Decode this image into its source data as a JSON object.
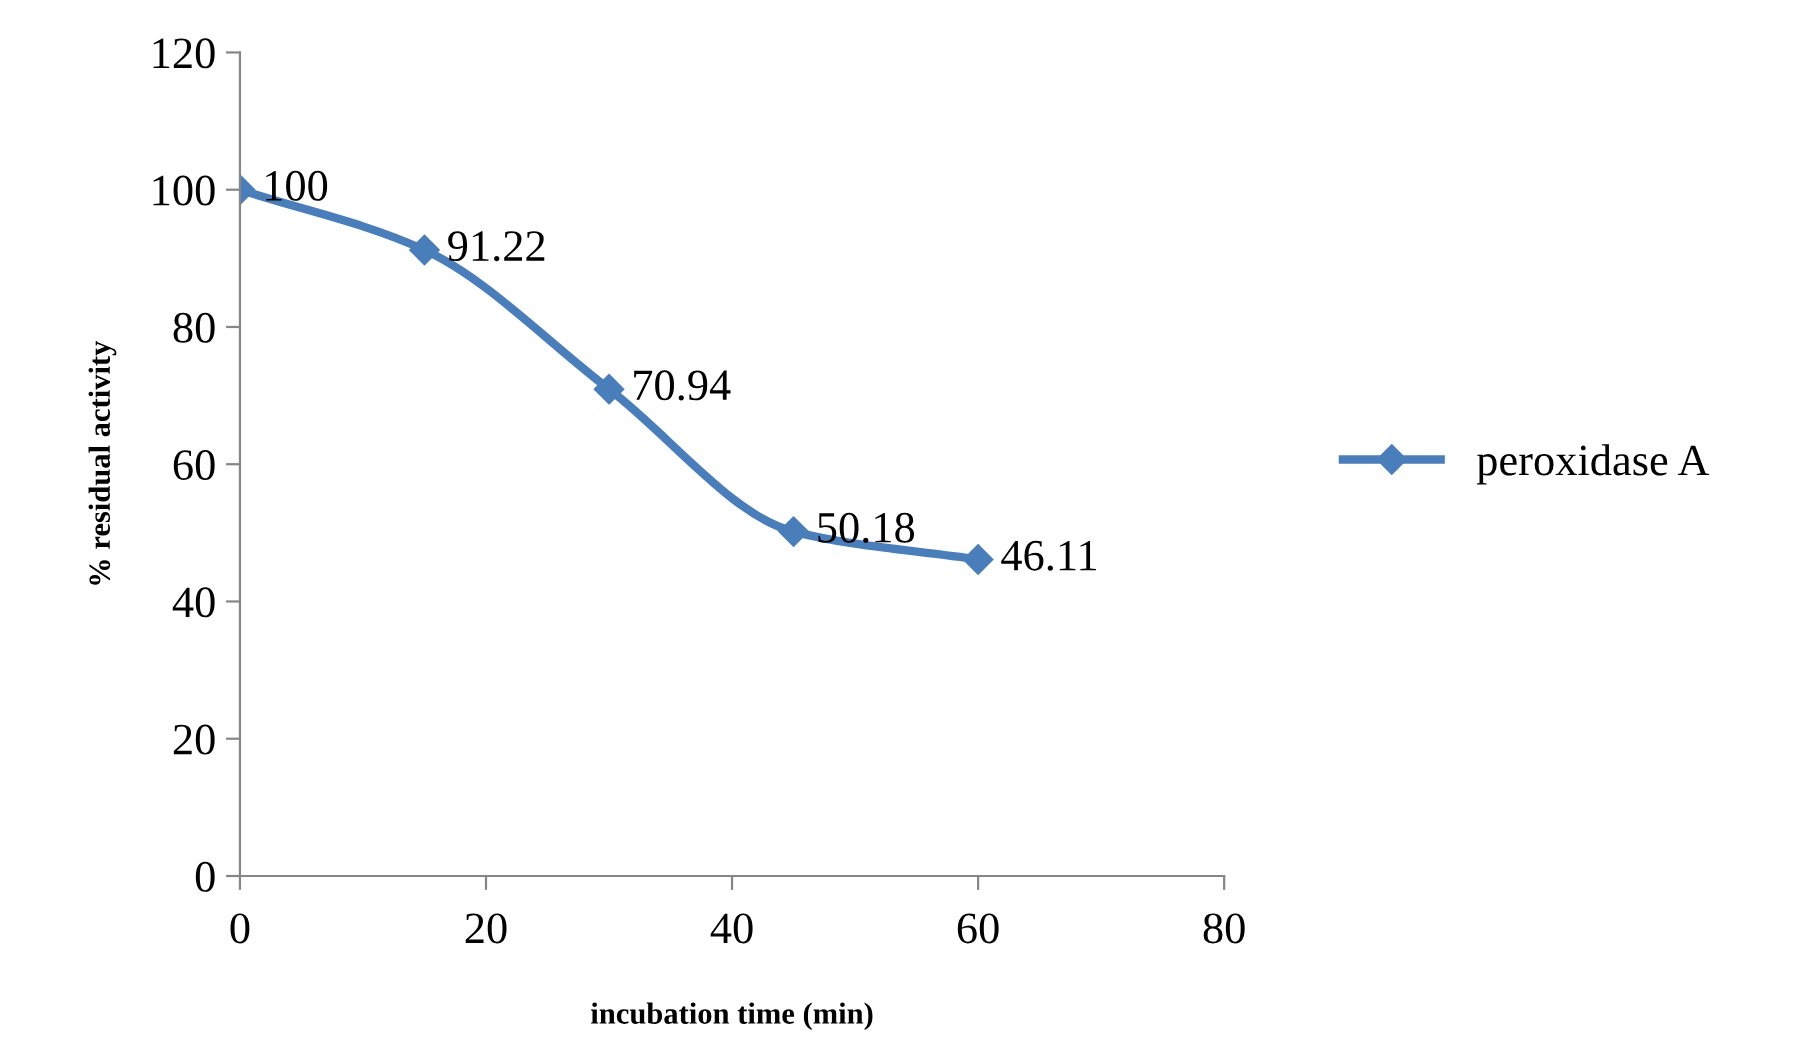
{
  "chart_data": {
    "type": "line",
    "xlabel": "incubation time (min)",
    "ylabel": "% residual activity",
    "x": [
      0,
      15,
      30,
      45,
      60
    ],
    "series": [
      {
        "name": "peroxidase A",
        "color": "#4a7ebb",
        "values": [
          100,
          91.22,
          70.94,
          50.18,
          46.11
        ]
      }
    ],
    "data_labels": true,
    "xlim": [
      0,
      80
    ],
    "ylim": [
      0,
      120
    ],
    "xticks": [
      0,
      20,
      40,
      60,
      80
    ],
    "yticks": [
      0,
      20,
      40,
      60,
      80,
      100,
      120
    ],
    "grid": false,
    "legend": "right",
    "marker": "diamond",
    "line_style": "solid"
  }
}
